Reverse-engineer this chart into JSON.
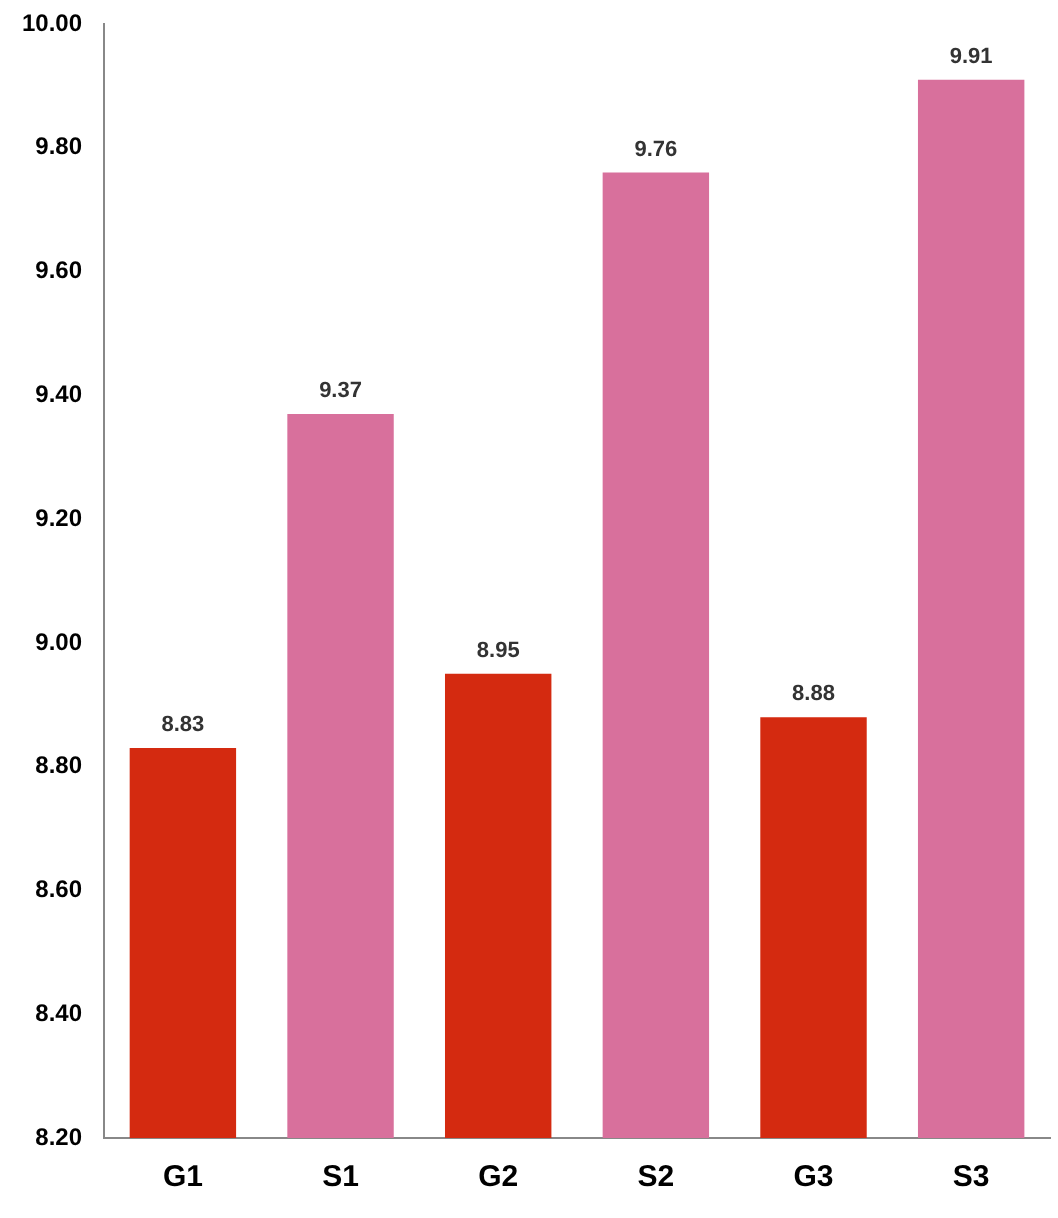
{
  "chart_data": {
    "type": "bar",
    "categories": [
      "G1",
      "S1",
      "G2",
      "S2",
      "G3",
      "S3"
    ],
    "values": [
      8.83,
      9.37,
      8.95,
      9.76,
      8.88,
      9.91
    ],
    "colors": [
      "#d42a10",
      "#d8709c",
      "#d42a10",
      "#d8709c",
      "#d42a10",
      "#d8709c"
    ],
    "ylim": [
      8.2,
      10.0
    ],
    "yticks": [
      {
        "value": 8.2,
        "label": "8.20"
      },
      {
        "value": 8.4,
        "label": "8.40"
      },
      {
        "value": 8.6,
        "label": "8.60"
      },
      {
        "value": 8.8,
        "label": "8.80"
      },
      {
        "value": 9.0,
        "label": "9.00"
      },
      {
        "value": 9.2,
        "label": "9.20"
      },
      {
        "value": 9.4,
        "label": "9.40"
      },
      {
        "value": 9.6,
        "label": "9.60"
      },
      {
        "value": 9.8,
        "label": "9.80"
      },
      {
        "value": 10.0,
        "label": "10.00"
      }
    ],
    "grid": false,
    "legend": false,
    "data_labels": true
  }
}
